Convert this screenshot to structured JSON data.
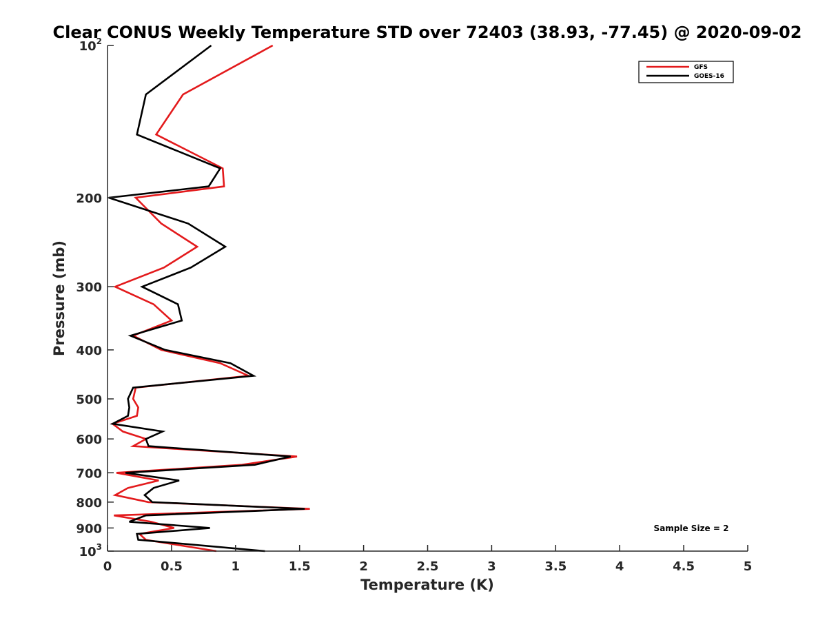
{
  "chart_data": {
    "type": "line",
    "title": "Clear CONUS Weekly Temperature STD over 72403 (38.93, -77.45) @ 2020-09-02",
    "xlabel": "Temperature (K)",
    "ylabel": "Pressure (mb)",
    "xlim": [
      0,
      5
    ],
    "ylim": [
      100,
      1000
    ],
    "y_scale": "log",
    "y_reversed": true,
    "grid": false,
    "legend_position": "top-right",
    "x_ticks": [
      {
        "value": 0,
        "label": "0"
      },
      {
        "value": 0.5,
        "label": "0.5"
      },
      {
        "value": 1,
        "label": "1"
      },
      {
        "value": 1.5,
        "label": "1.5"
      },
      {
        "value": 2,
        "label": "2"
      },
      {
        "value": 2.5,
        "label": "2.5"
      },
      {
        "value": 3,
        "label": "3"
      },
      {
        "value": 3.5,
        "label": "3.5"
      },
      {
        "value": 4,
        "label": "4"
      },
      {
        "value": 4.5,
        "label": "4.5"
      },
      {
        "value": 5,
        "label": "5"
      }
    ],
    "y_ticks": [
      {
        "value": 100,
        "label": "10",
        "exp": "2"
      },
      {
        "value": 200,
        "label": "200"
      },
      {
        "value": 300,
        "label": "300"
      },
      {
        "value": 400,
        "label": "400"
      },
      {
        "value": 500,
        "label": "500"
      },
      {
        "value": 600,
        "label": "600"
      },
      {
        "value": 700,
        "label": "700"
      },
      {
        "value": 800,
        "label": "800"
      },
      {
        "value": 900,
        "label": "900"
      },
      {
        "value": 1000,
        "label": "10",
        "exp": "3"
      }
    ],
    "series": [
      {
        "name": "GFS",
        "color": "#e31a1c",
        "points": [
          {
            "x": 1.29,
            "y": 100
          },
          {
            "x": 0.59,
            "y": 125
          },
          {
            "x": 0.38,
            "y": 150
          },
          {
            "x": 0.9,
            "y": 175
          },
          {
            "x": 0.91,
            "y": 190
          },
          {
            "x": 0.22,
            "y": 200
          },
          {
            "x": 0.42,
            "y": 225
          },
          {
            "x": 0.7,
            "y": 250
          },
          {
            "x": 0.44,
            "y": 275
          },
          {
            "x": 0.06,
            "y": 300
          },
          {
            "x": 0.36,
            "y": 325
          },
          {
            "x": 0.5,
            "y": 350
          },
          {
            "x": 0.2,
            "y": 375
          },
          {
            "x": 0.42,
            "y": 400
          },
          {
            "x": 0.88,
            "y": 425
          },
          {
            "x": 1.1,
            "y": 450
          },
          {
            "x": 0.22,
            "y": 475
          },
          {
            "x": 0.2,
            "y": 500
          },
          {
            "x": 0.24,
            "y": 520
          },
          {
            "x": 0.23,
            "y": 540
          },
          {
            "x": 0.04,
            "y": 560
          },
          {
            "x": 0.12,
            "y": 580
          },
          {
            "x": 0.3,
            "y": 600
          },
          {
            "x": 0.2,
            "y": 620
          },
          {
            "x": 1.48,
            "y": 650
          },
          {
            "x": 1.05,
            "y": 675
          },
          {
            "x": 0.07,
            "y": 700
          },
          {
            "x": 0.4,
            "y": 725
          },
          {
            "x": 0.16,
            "y": 750
          },
          {
            "x": 0.06,
            "y": 775
          },
          {
            "x": 0.32,
            "y": 800
          },
          {
            "x": 1.58,
            "y": 825
          },
          {
            "x": 0.05,
            "y": 850
          },
          {
            "x": 0.34,
            "y": 875
          },
          {
            "x": 0.52,
            "y": 900
          },
          {
            "x": 0.25,
            "y": 925
          },
          {
            "x": 0.3,
            "y": 950
          },
          {
            "x": 0.85,
            "y": 1000
          }
        ]
      },
      {
        "name": "GOES-16",
        "color": "#000000",
        "points": [
          {
            "x": 0.81,
            "y": 100
          },
          {
            "x": 0.3,
            "y": 125
          },
          {
            "x": 0.23,
            "y": 150
          },
          {
            "x": 0.88,
            "y": 175
          },
          {
            "x": 0.79,
            "y": 190
          },
          {
            "x": 0.01,
            "y": 200
          },
          {
            "x": 0.63,
            "y": 225
          },
          {
            "x": 0.92,
            "y": 250
          },
          {
            "x": 0.65,
            "y": 275
          },
          {
            "x": 0.27,
            "y": 300
          },
          {
            "x": 0.55,
            "y": 325
          },
          {
            "x": 0.58,
            "y": 350
          },
          {
            "x": 0.18,
            "y": 375
          },
          {
            "x": 0.45,
            "y": 400
          },
          {
            "x": 0.96,
            "y": 425
          },
          {
            "x": 1.14,
            "y": 450
          },
          {
            "x": 0.2,
            "y": 475
          },
          {
            "x": 0.16,
            "y": 500
          },
          {
            "x": 0.17,
            "y": 520
          },
          {
            "x": 0.16,
            "y": 540
          },
          {
            "x": 0.04,
            "y": 560
          },
          {
            "x": 0.43,
            "y": 580
          },
          {
            "x": 0.3,
            "y": 600
          },
          {
            "x": 0.32,
            "y": 620
          },
          {
            "x": 1.43,
            "y": 650
          },
          {
            "x": 1.15,
            "y": 675
          },
          {
            "x": 0.14,
            "y": 700
          },
          {
            "x": 0.56,
            "y": 725
          },
          {
            "x": 0.36,
            "y": 750
          },
          {
            "x": 0.29,
            "y": 775
          },
          {
            "x": 0.35,
            "y": 800
          },
          {
            "x": 1.54,
            "y": 825
          },
          {
            "x": 0.3,
            "y": 850
          },
          {
            "x": 0.17,
            "y": 875
          },
          {
            "x": 0.8,
            "y": 900
          },
          {
            "x": 0.23,
            "y": 925
          },
          {
            "x": 0.24,
            "y": 950
          },
          {
            "x": 1.23,
            "y": 1000
          }
        ]
      }
    ],
    "annotations": [
      {
        "text": "Sample Size = 2",
        "position": "bottom-right"
      }
    ]
  }
}
